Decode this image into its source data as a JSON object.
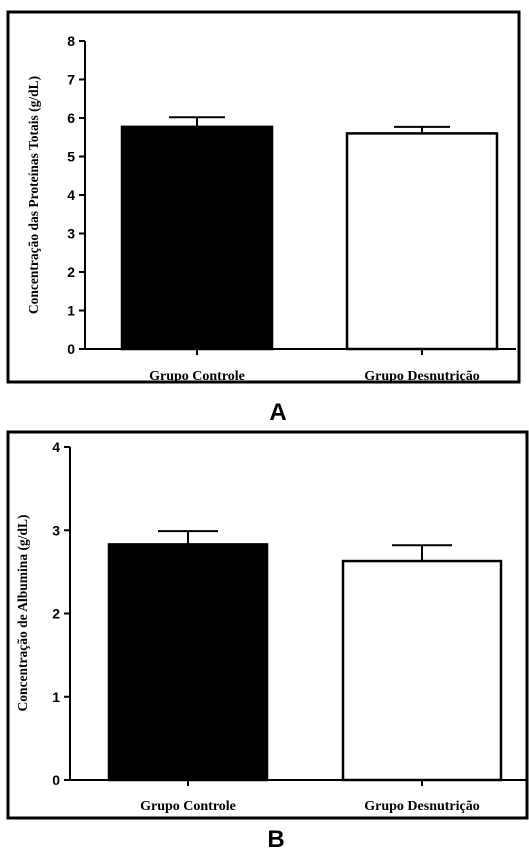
{
  "chart_data": [
    {
      "type": "bar",
      "panel_label": "A",
      "title": "",
      "xlabel": "",
      "ylabel": "Concentração das Proteínas Totais (g/dL)",
      "ylim": [
        0,
        8
      ],
      "yticks": [
        0,
        1,
        2,
        3,
        4,
        5,
        6,
        7,
        8
      ],
      "categories": [
        "Grupo Controle",
        "Grupo Desnutrição"
      ],
      "values": [
        5.77,
        5.6
      ],
      "errors": [
        0.25,
        0.17
      ],
      "bar_colors": [
        "#000000",
        "#ffffff"
      ],
      "grid": false
    },
    {
      "type": "bar",
      "panel_label": "B",
      "title": "",
      "xlabel": "",
      "ylabel": "Concentração de Albumina (g/dL)",
      "ylim": [
        0,
        4
      ],
      "yticks": [
        0,
        1,
        2,
        3,
        4
      ],
      "categories": [
        "Grupo Controle",
        "Grupo Desnutrição"
      ],
      "values": [
        2.83,
        2.63
      ],
      "errors": [
        0.16,
        0.19
      ],
      "bar_colors": [
        "#000000",
        "#ffffff"
      ],
      "grid": false
    }
  ]
}
